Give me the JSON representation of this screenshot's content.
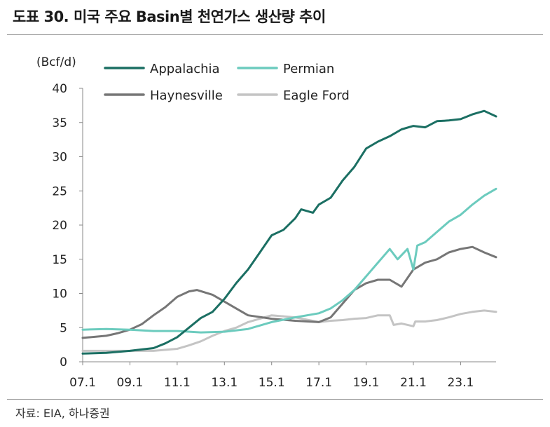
{
  "header": {
    "title": "도표 30. 미국 주요 Basin별 천연가스 생산량 추이"
  },
  "footer": {
    "source": "자료: EIA, 하나증권"
  },
  "colors": {
    "Appalachia": "#1b6f63",
    "Permian": "#6ccbbe",
    "Haynesville": "#767676",
    "Eagle Ford": "#c4c4c4"
  },
  "chart_data": {
    "type": "line",
    "unit_label": "(Bcf/d)",
    "ylim": [
      0,
      40
    ],
    "yticks": [
      0,
      5,
      10,
      15,
      20,
      25,
      30,
      35,
      40
    ],
    "xlim": [
      "2007-01",
      "2024-07"
    ],
    "xticks": [
      "07.1",
      "09.1",
      "11.1",
      "13.1",
      "15.1",
      "17.1",
      "19.1",
      "21.1",
      "23.1"
    ],
    "grid": false,
    "legend_position": "top-left",
    "series": [
      {
        "name": "Appalachia",
        "points": [
          [
            "2007-01",
            1.2
          ],
          [
            "2008-01",
            1.3
          ],
          [
            "2009-01",
            1.6
          ],
          [
            "2009-07",
            1.8
          ],
          [
            "2010-01",
            2.0
          ],
          [
            "2010-07",
            2.7
          ],
          [
            "2011-01",
            3.6
          ],
          [
            "2011-07",
            5.0
          ],
          [
            "2012-01",
            6.4
          ],
          [
            "2012-07",
            7.3
          ],
          [
            "2013-01",
            9.2
          ],
          [
            "2013-07",
            11.5
          ],
          [
            "2014-01",
            13.5
          ],
          [
            "2014-07",
            16.0
          ],
          [
            "2015-01",
            18.5
          ],
          [
            "2015-07",
            19.3
          ],
          [
            "2016-01",
            21.0
          ],
          [
            "2016-04",
            22.3
          ],
          [
            "2016-10",
            21.8
          ],
          [
            "2017-01",
            23.0
          ],
          [
            "2017-07",
            24.0
          ],
          [
            "2018-01",
            26.5
          ],
          [
            "2018-07",
            28.5
          ],
          [
            "2019-01",
            31.2
          ],
          [
            "2019-07",
            32.2
          ],
          [
            "2020-01",
            33.0
          ],
          [
            "2020-07",
            34.0
          ],
          [
            "2021-01",
            34.5
          ],
          [
            "2021-07",
            34.3
          ],
          [
            "2022-01",
            35.2
          ],
          [
            "2022-07",
            35.3
          ],
          [
            "2023-01",
            35.5
          ],
          [
            "2023-07",
            36.2
          ],
          [
            "2024-01",
            36.7
          ],
          [
            "2024-07",
            35.9
          ]
        ]
      },
      {
        "name": "Permian",
        "points": [
          [
            "2007-01",
            4.7
          ],
          [
            "2008-01",
            4.8
          ],
          [
            "2009-01",
            4.7
          ],
          [
            "2010-01",
            4.5
          ],
          [
            "2011-01",
            4.5
          ],
          [
            "2012-01",
            4.3
          ],
          [
            "2013-01",
            4.4
          ],
          [
            "2014-01",
            4.8
          ],
          [
            "2015-01",
            5.8
          ],
          [
            "2016-01",
            6.5
          ],
          [
            "2017-01",
            7.1
          ],
          [
            "2017-07",
            7.8
          ],
          [
            "2018-01",
            9.0
          ],
          [
            "2018-07",
            10.5
          ],
          [
            "2019-01",
            12.5
          ],
          [
            "2019-07",
            14.5
          ],
          [
            "2020-01",
            16.5
          ],
          [
            "2020-05",
            15.0
          ],
          [
            "2020-10",
            16.5
          ],
          [
            "2021-01",
            13.5
          ],
          [
            "2021-03",
            17.0
          ],
          [
            "2021-07",
            17.5
          ],
          [
            "2022-01",
            19.0
          ],
          [
            "2022-07",
            20.5
          ],
          [
            "2023-01",
            21.5
          ],
          [
            "2023-07",
            23.0
          ],
          [
            "2024-01",
            24.3
          ],
          [
            "2024-07",
            25.3
          ]
        ]
      },
      {
        "name": "Haynesville",
        "points": [
          [
            "2007-01",
            3.5
          ],
          [
            "2008-01",
            3.8
          ],
          [
            "2008-07",
            4.2
          ],
          [
            "2009-01",
            4.7
          ],
          [
            "2009-07",
            5.5
          ],
          [
            "2010-01",
            6.8
          ],
          [
            "2010-07",
            8.0
          ],
          [
            "2011-01",
            9.5
          ],
          [
            "2011-07",
            10.3
          ],
          [
            "2011-11",
            10.5
          ],
          [
            "2012-07",
            9.8
          ],
          [
            "2013-01",
            8.8
          ],
          [
            "2013-07",
            7.8
          ],
          [
            "2014-01",
            6.8
          ],
          [
            "2015-01",
            6.3
          ],
          [
            "2016-01",
            6.0
          ],
          [
            "2017-01",
            5.8
          ],
          [
            "2017-07",
            6.5
          ],
          [
            "2018-01",
            8.5
          ],
          [
            "2018-07",
            10.5
          ],
          [
            "2019-01",
            11.5
          ],
          [
            "2019-07",
            12.0
          ],
          [
            "2020-01",
            12.0
          ],
          [
            "2020-07",
            11.0
          ],
          [
            "2021-01",
            13.5
          ],
          [
            "2021-07",
            14.5
          ],
          [
            "2022-01",
            15.0
          ],
          [
            "2022-07",
            16.0
          ],
          [
            "2023-01",
            16.5
          ],
          [
            "2023-07",
            16.8
          ],
          [
            "2024-01",
            16.0
          ],
          [
            "2024-07",
            15.3
          ]
        ]
      },
      {
        "name": "Eagle Ford",
        "points": [
          [
            "2007-01",
            1.6
          ],
          [
            "2008-01",
            1.6
          ],
          [
            "2009-01",
            1.6
          ],
          [
            "2010-01",
            1.6
          ],
          [
            "2011-01",
            1.9
          ],
          [
            "2011-07",
            2.4
          ],
          [
            "2012-01",
            3.0
          ],
          [
            "2012-07",
            3.8
          ],
          [
            "2013-01",
            4.5
          ],
          [
            "2013-07",
            5.0
          ],
          [
            "2014-01",
            5.8
          ],
          [
            "2015-01",
            6.8
          ],
          [
            "2016-01",
            6.5
          ],
          [
            "2017-01",
            5.8
          ],
          [
            "2017-07",
            6.0
          ],
          [
            "2018-01",
            6.1
          ],
          [
            "2018-07",
            6.3
          ],
          [
            "2019-01",
            6.4
          ],
          [
            "2019-07",
            6.8
          ],
          [
            "2020-01",
            6.8
          ],
          [
            "2020-03",
            5.4
          ],
          [
            "2020-07",
            5.6
          ],
          [
            "2021-01",
            5.2
          ],
          [
            "2021-02",
            5.9
          ],
          [
            "2021-07",
            5.9
          ],
          [
            "2022-01",
            6.1
          ],
          [
            "2022-07",
            6.5
          ],
          [
            "2023-01",
            7.0
          ],
          [
            "2023-07",
            7.3
          ],
          [
            "2024-01",
            7.5
          ],
          [
            "2024-07",
            7.3
          ]
        ]
      }
    ]
  }
}
